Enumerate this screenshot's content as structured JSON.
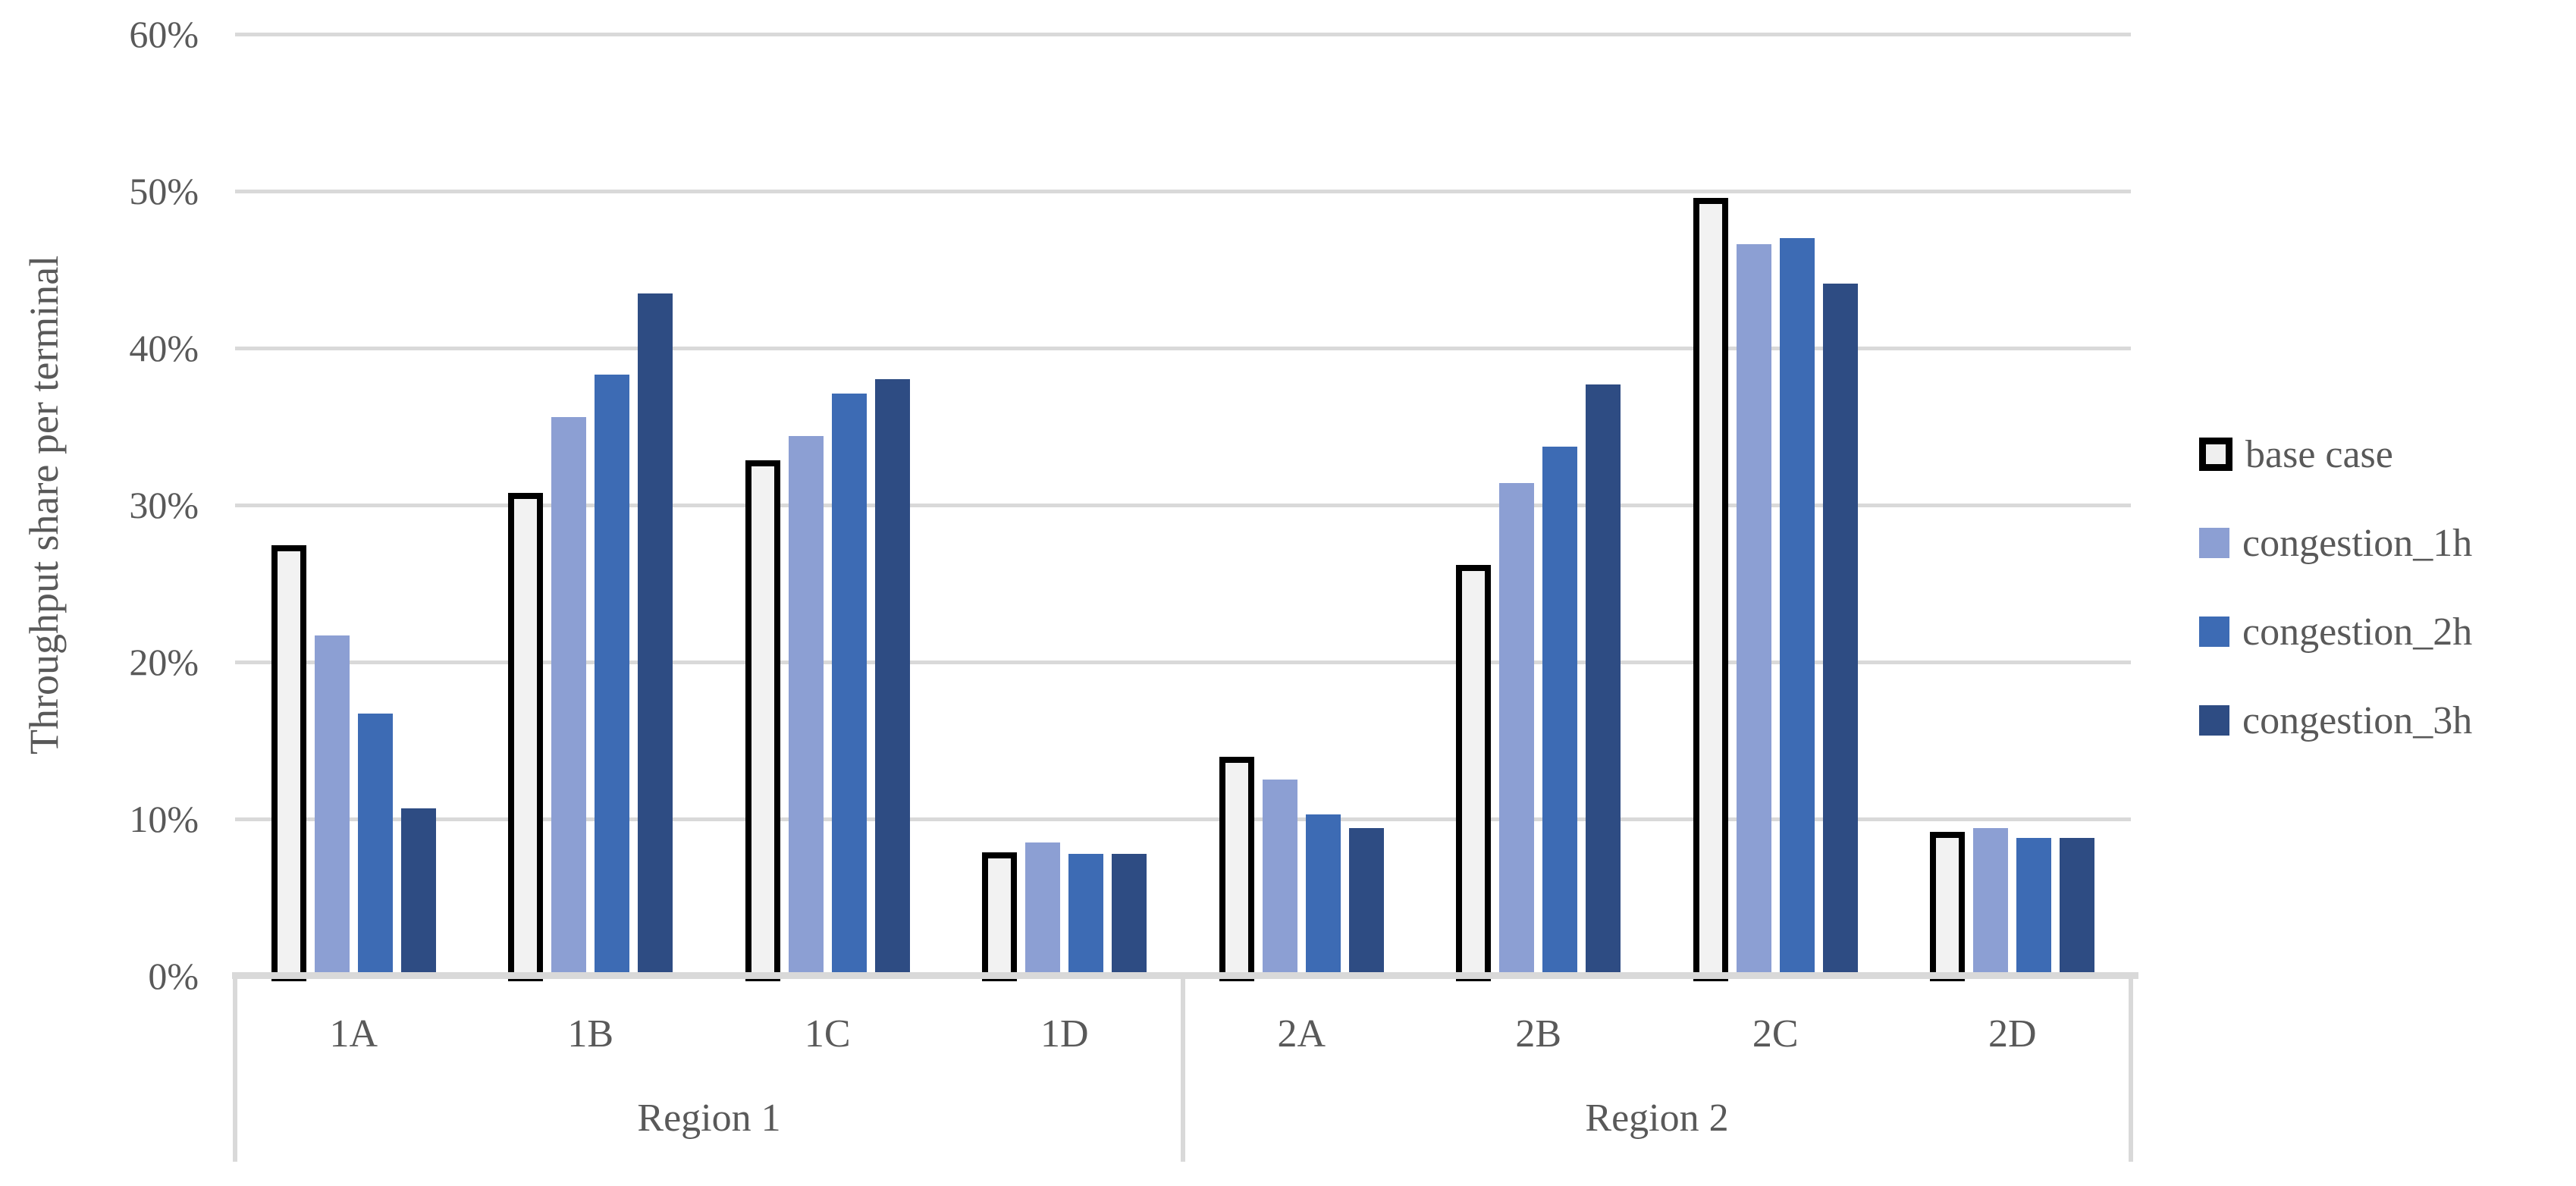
{
  "chart_data": {
    "type": "bar",
    "title": "",
    "ylabel": "Throughput share per terminal",
    "xlabel": "",
    "grid": true,
    "legend_position": "right",
    "y_axis": {
      "min": 0,
      "max": 60,
      "tick_step": 10,
      "tick_labels": [
        "0%",
        "10%",
        "20%",
        "30%",
        "40%",
        "50%",
        "60%"
      ],
      "unit": "%"
    },
    "categories": [
      "1A",
      "1B",
      "1C",
      "1D",
      "2A",
      "2B",
      "2C",
      "2D"
    ],
    "region_groups": [
      {
        "label": "Region 1",
        "categories": [
          "1A",
          "1B",
          "1C",
          "1D"
        ]
      },
      {
        "label": "Region 2",
        "categories": [
          "2A",
          "2B",
          "2C",
          "2D"
        ]
      }
    ],
    "series": [
      {
        "name": "base case",
        "fill": "#F2F2F2",
        "border": "#000000",
        "values": [
          27.8,
          31.1,
          33.2,
          8.2,
          14.3,
          26.5,
          49.9,
          9.5
        ]
      },
      {
        "name": "congestion_1h",
        "fill": "#8C9FD3",
        "border": null,
        "values": [
          21.7,
          35.6,
          34.4,
          8.5,
          12.5,
          31.4,
          46.6,
          9.4
        ]
      },
      {
        "name": "congestion_2h",
        "fill": "#3D6BB4",
        "border": null,
        "values": [
          16.7,
          38.3,
          37.1,
          7.8,
          10.3,
          33.7,
          47.0,
          8.8
        ]
      },
      {
        "name": "congestion_3h",
        "fill": "#2E4C83",
        "border": null,
        "values": [
          10.7,
          43.5,
          38.0,
          7.8,
          9.4,
          37.7,
          44.1,
          8.8
        ]
      }
    ],
    "colors": {
      "gridline": "#D9D9D9",
      "axis_line": "#D9D9D9",
      "text": "#595959",
      "background": "#FFFFFF"
    }
  }
}
